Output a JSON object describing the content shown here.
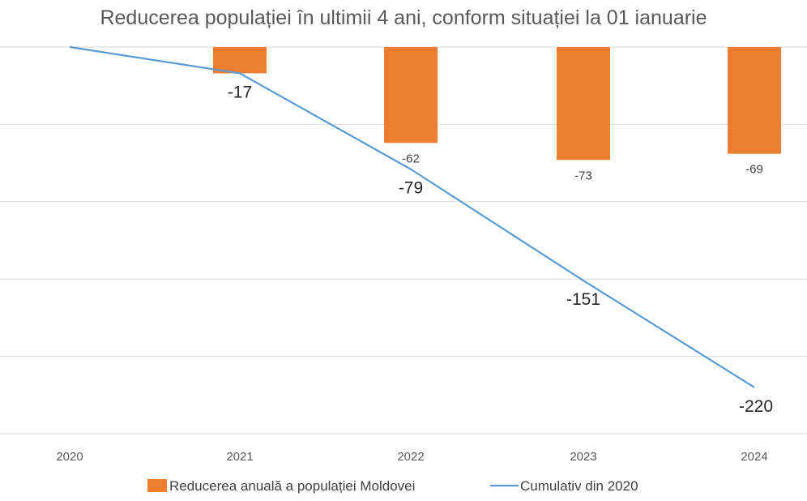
{
  "chart_data": {
    "type": "bar",
    "title": "Reducerea populației în ultimii 4 ani, conform situației la 01 ianuarie",
    "xlabel": "",
    "ylabel": "",
    "categories": [
      "2020",
      "2021",
      "2022",
      "2023",
      "2024"
    ],
    "ylim": [
      -250,
      0
    ],
    "grid": true,
    "legend_position": "bottom",
    "series": [
      {
        "name": "Reducerea anuală a populației Moldovei",
        "type": "bar",
        "color": "#ED7D31",
        "values": [
          null,
          -17,
          -62,
          -73,
          -69
        ],
        "labels": [
          "",
          "-17",
          "-62",
          "-73",
          "-69"
        ]
      },
      {
        "name": "Cumulativ din 2020",
        "type": "line",
        "color": "#5B9BD5",
        "values": [
          0,
          -17,
          -79,
          -151,
          -220
        ],
        "labels": [
          "",
          "-17",
          "-79",
          "-151",
          "-220"
        ]
      }
    ]
  }
}
